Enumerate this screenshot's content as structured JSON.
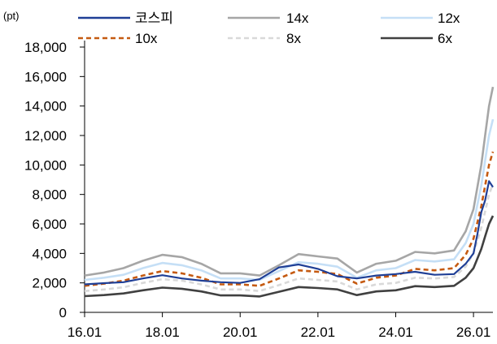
{
  "chart_data": {
    "type": "line",
    "unit_label": "(pt)",
    "title": "",
    "xlabel": "",
    "ylabel": "",
    "ylim": [
      0,
      18000
    ],
    "y_ticks": [
      0,
      2000,
      4000,
      6000,
      8000,
      10000,
      12000,
      14000,
      16000,
      18000
    ],
    "y_tick_labels": [
      "0",
      "2,000",
      "4,000",
      "6,000",
      "8,000",
      "10,000",
      "12,000",
      "14,000",
      "16,000",
      "18,000"
    ],
    "x_range": [
      2016.0,
      2026.5
    ],
    "x_ticks": [
      2016,
      2018,
      2020,
      2022,
      2024,
      2026
    ],
    "x_tick_labels": [
      "16.01",
      "18.01",
      "20.01",
      "22.01",
      "24.01",
      "26.01"
    ],
    "grid": false,
    "legend_position": "top",
    "x": [
      2016.0,
      2016.5,
      2017.0,
      2017.5,
      2018.0,
      2018.5,
      2019.0,
      2019.5,
      2020.0,
      2020.5,
      2021.0,
      2021.5,
      2022.0,
      2022.5,
      2023.0,
      2023.5,
      2024.0,
      2024.5,
      2025.0,
      2025.5,
      2025.8,
      2026.0,
      2026.1,
      2026.2,
      2026.3,
      2026.4,
      2026.5
    ],
    "series": [
      {
        "name": "코스피",
        "color": "#1f3f96",
        "dash": "solid",
        "values": [
          1900,
          1980,
          2050,
          2300,
          2520,
          2300,
          2150,
          2050,
          2000,
          2250,
          3050,
          3250,
          2950,
          2450,
          2300,
          2500,
          2600,
          2750,
          2550,
          2600,
          3300,
          4000,
          5300,
          6800,
          7600,
          8900,
          8500
        ]
      },
      {
        "name": "14x",
        "color": "#a6a6a6",
        "dash": "solid",
        "values": [
          2500,
          2700,
          3000,
          3500,
          3900,
          3750,
          3300,
          2650,
          2650,
          2500,
          3200,
          3950,
          3800,
          3650,
          2700,
          3300,
          3500,
          4100,
          4000,
          4200,
          5500,
          7000,
          8500,
          10000,
          12000,
          14000,
          15300
        ]
      },
      {
        "name": "12x",
        "color": "#c5dff6",
        "dash": "solid",
        "values": [
          2200,
          2350,
          2550,
          3000,
          3350,
          3200,
          2850,
          2300,
          2300,
          2200,
          2800,
          3400,
          3300,
          3100,
          2350,
          2850,
          3000,
          3550,
          3450,
          3600,
          4700,
          6000,
          7300,
          8600,
          10300,
          12000,
          13100
        ]
      },
      {
        "name": "10x",
        "color": "#c55a11",
        "dash": "dashed",
        "values": [
          1800,
          1950,
          2150,
          2500,
          2800,
          2650,
          2350,
          1900,
          1900,
          1800,
          2300,
          2850,
          2750,
          2600,
          1950,
          2350,
          2500,
          2950,
          2850,
          3000,
          3900,
          5000,
          6100,
          7200,
          8600,
          10000,
          10900
        ]
      },
      {
        "name": "8x",
        "color": "#d9d9d9",
        "dash": "dashed",
        "values": [
          1450,
          1550,
          1700,
          2000,
          2250,
          2150,
          1900,
          1550,
          1550,
          1450,
          1850,
          2300,
          2200,
          2100,
          1550,
          1900,
          2000,
          2350,
          2300,
          2400,
          3100,
          4000,
          4850,
          5750,
          6850,
          8000,
          8700
        ]
      },
      {
        "name": "6x",
        "color": "#404040",
        "dash": "solid",
        "values": [
          1100,
          1170,
          1280,
          1500,
          1680,
          1600,
          1420,
          1150,
          1150,
          1080,
          1400,
          1720,
          1650,
          1560,
          1170,
          1420,
          1500,
          1780,
          1720,
          1800,
          2350,
          3000,
          3650,
          4300,
          5150,
          6000,
          6550
        ]
      }
    ]
  }
}
